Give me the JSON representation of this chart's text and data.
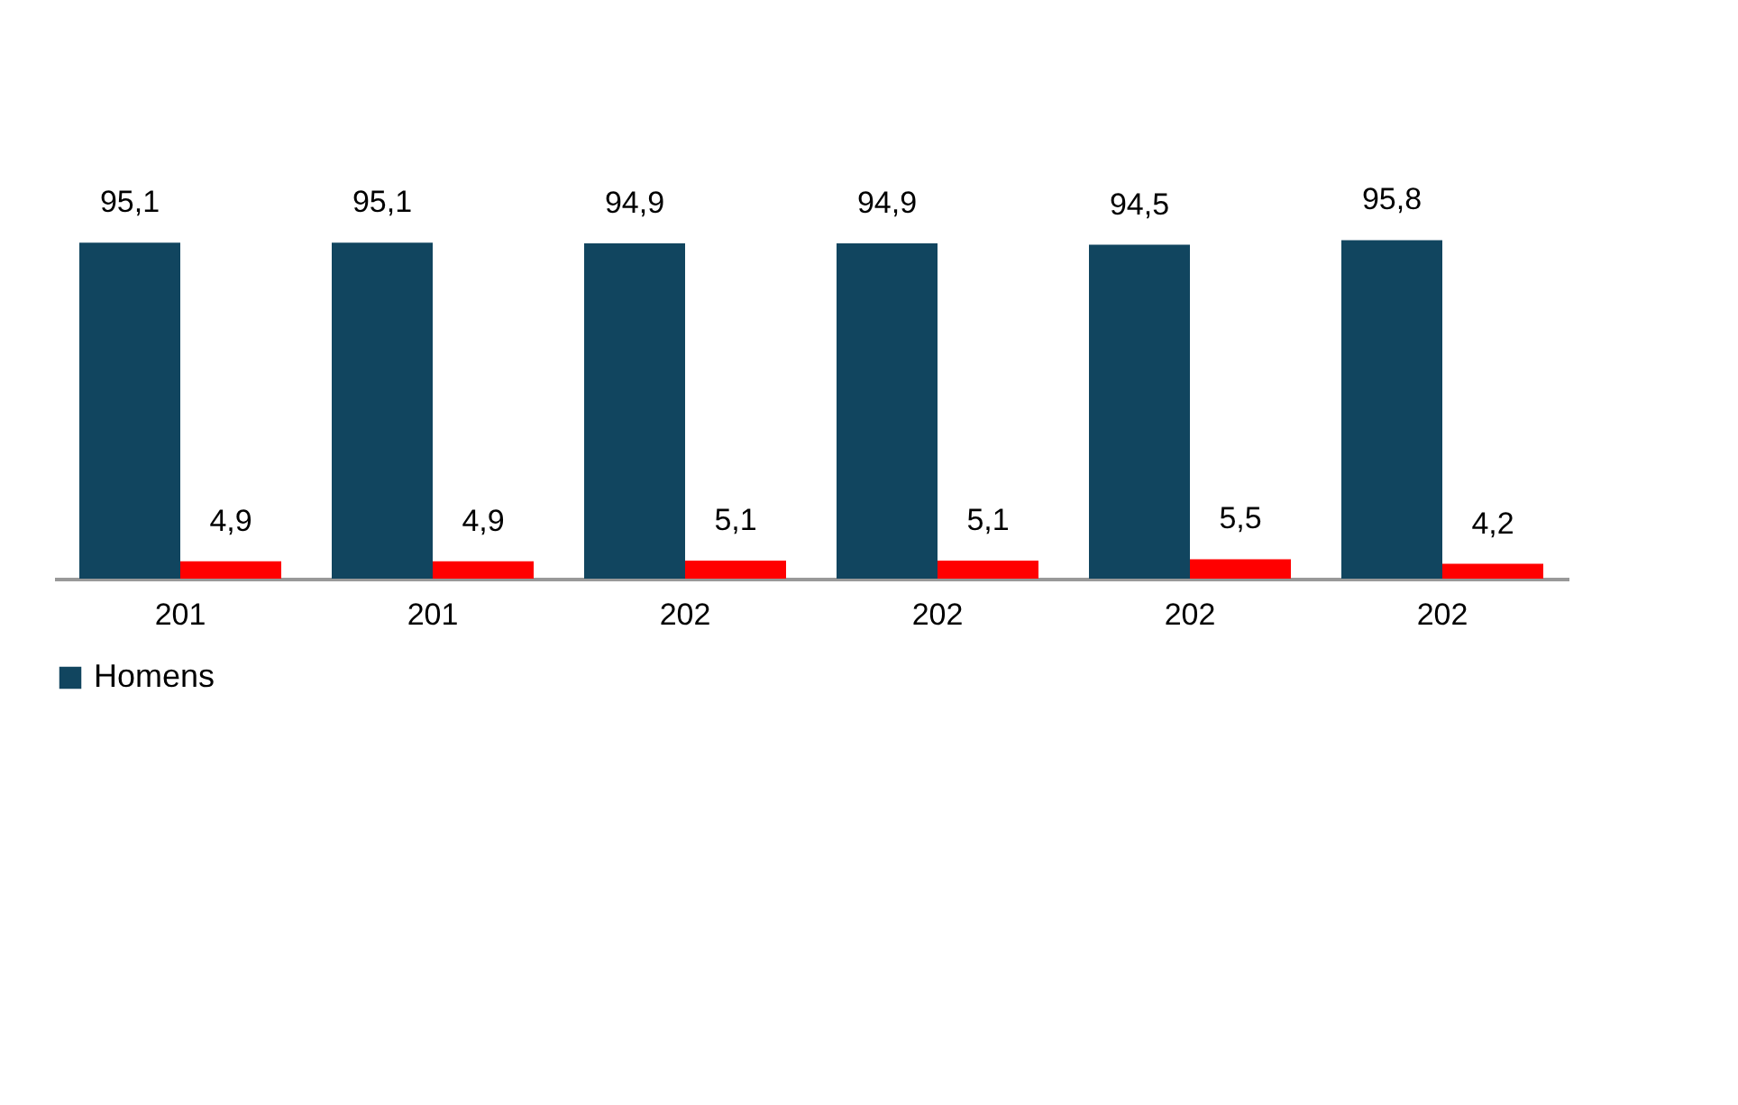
{
  "chart_data": {
    "type": "bar",
    "categories": [
      "201",
      "201",
      "202",
      "202",
      "202",
      "202"
    ],
    "series": [
      {
        "name": "Homens",
        "color": "#11455f",
        "values": [
          95.1,
          95.1,
          94.9,
          94.9,
          94.5,
          95.8
        ],
        "value_labels": [
          "95,1",
          "95,1",
          "94,9",
          "94,9",
          "94,5",
          "95,8"
        ]
      },
      {
        "color": "#ff0000",
        "values": [
          4.9,
          4.9,
          5.1,
          5.1,
          5.5,
          4.2
        ],
        "value_labels": [
          "4,9",
          "4,9",
          "5,1",
          "5,1",
          "5,5",
          "4,2"
        ]
      }
    ],
    "legend": "bottom"
  }
}
